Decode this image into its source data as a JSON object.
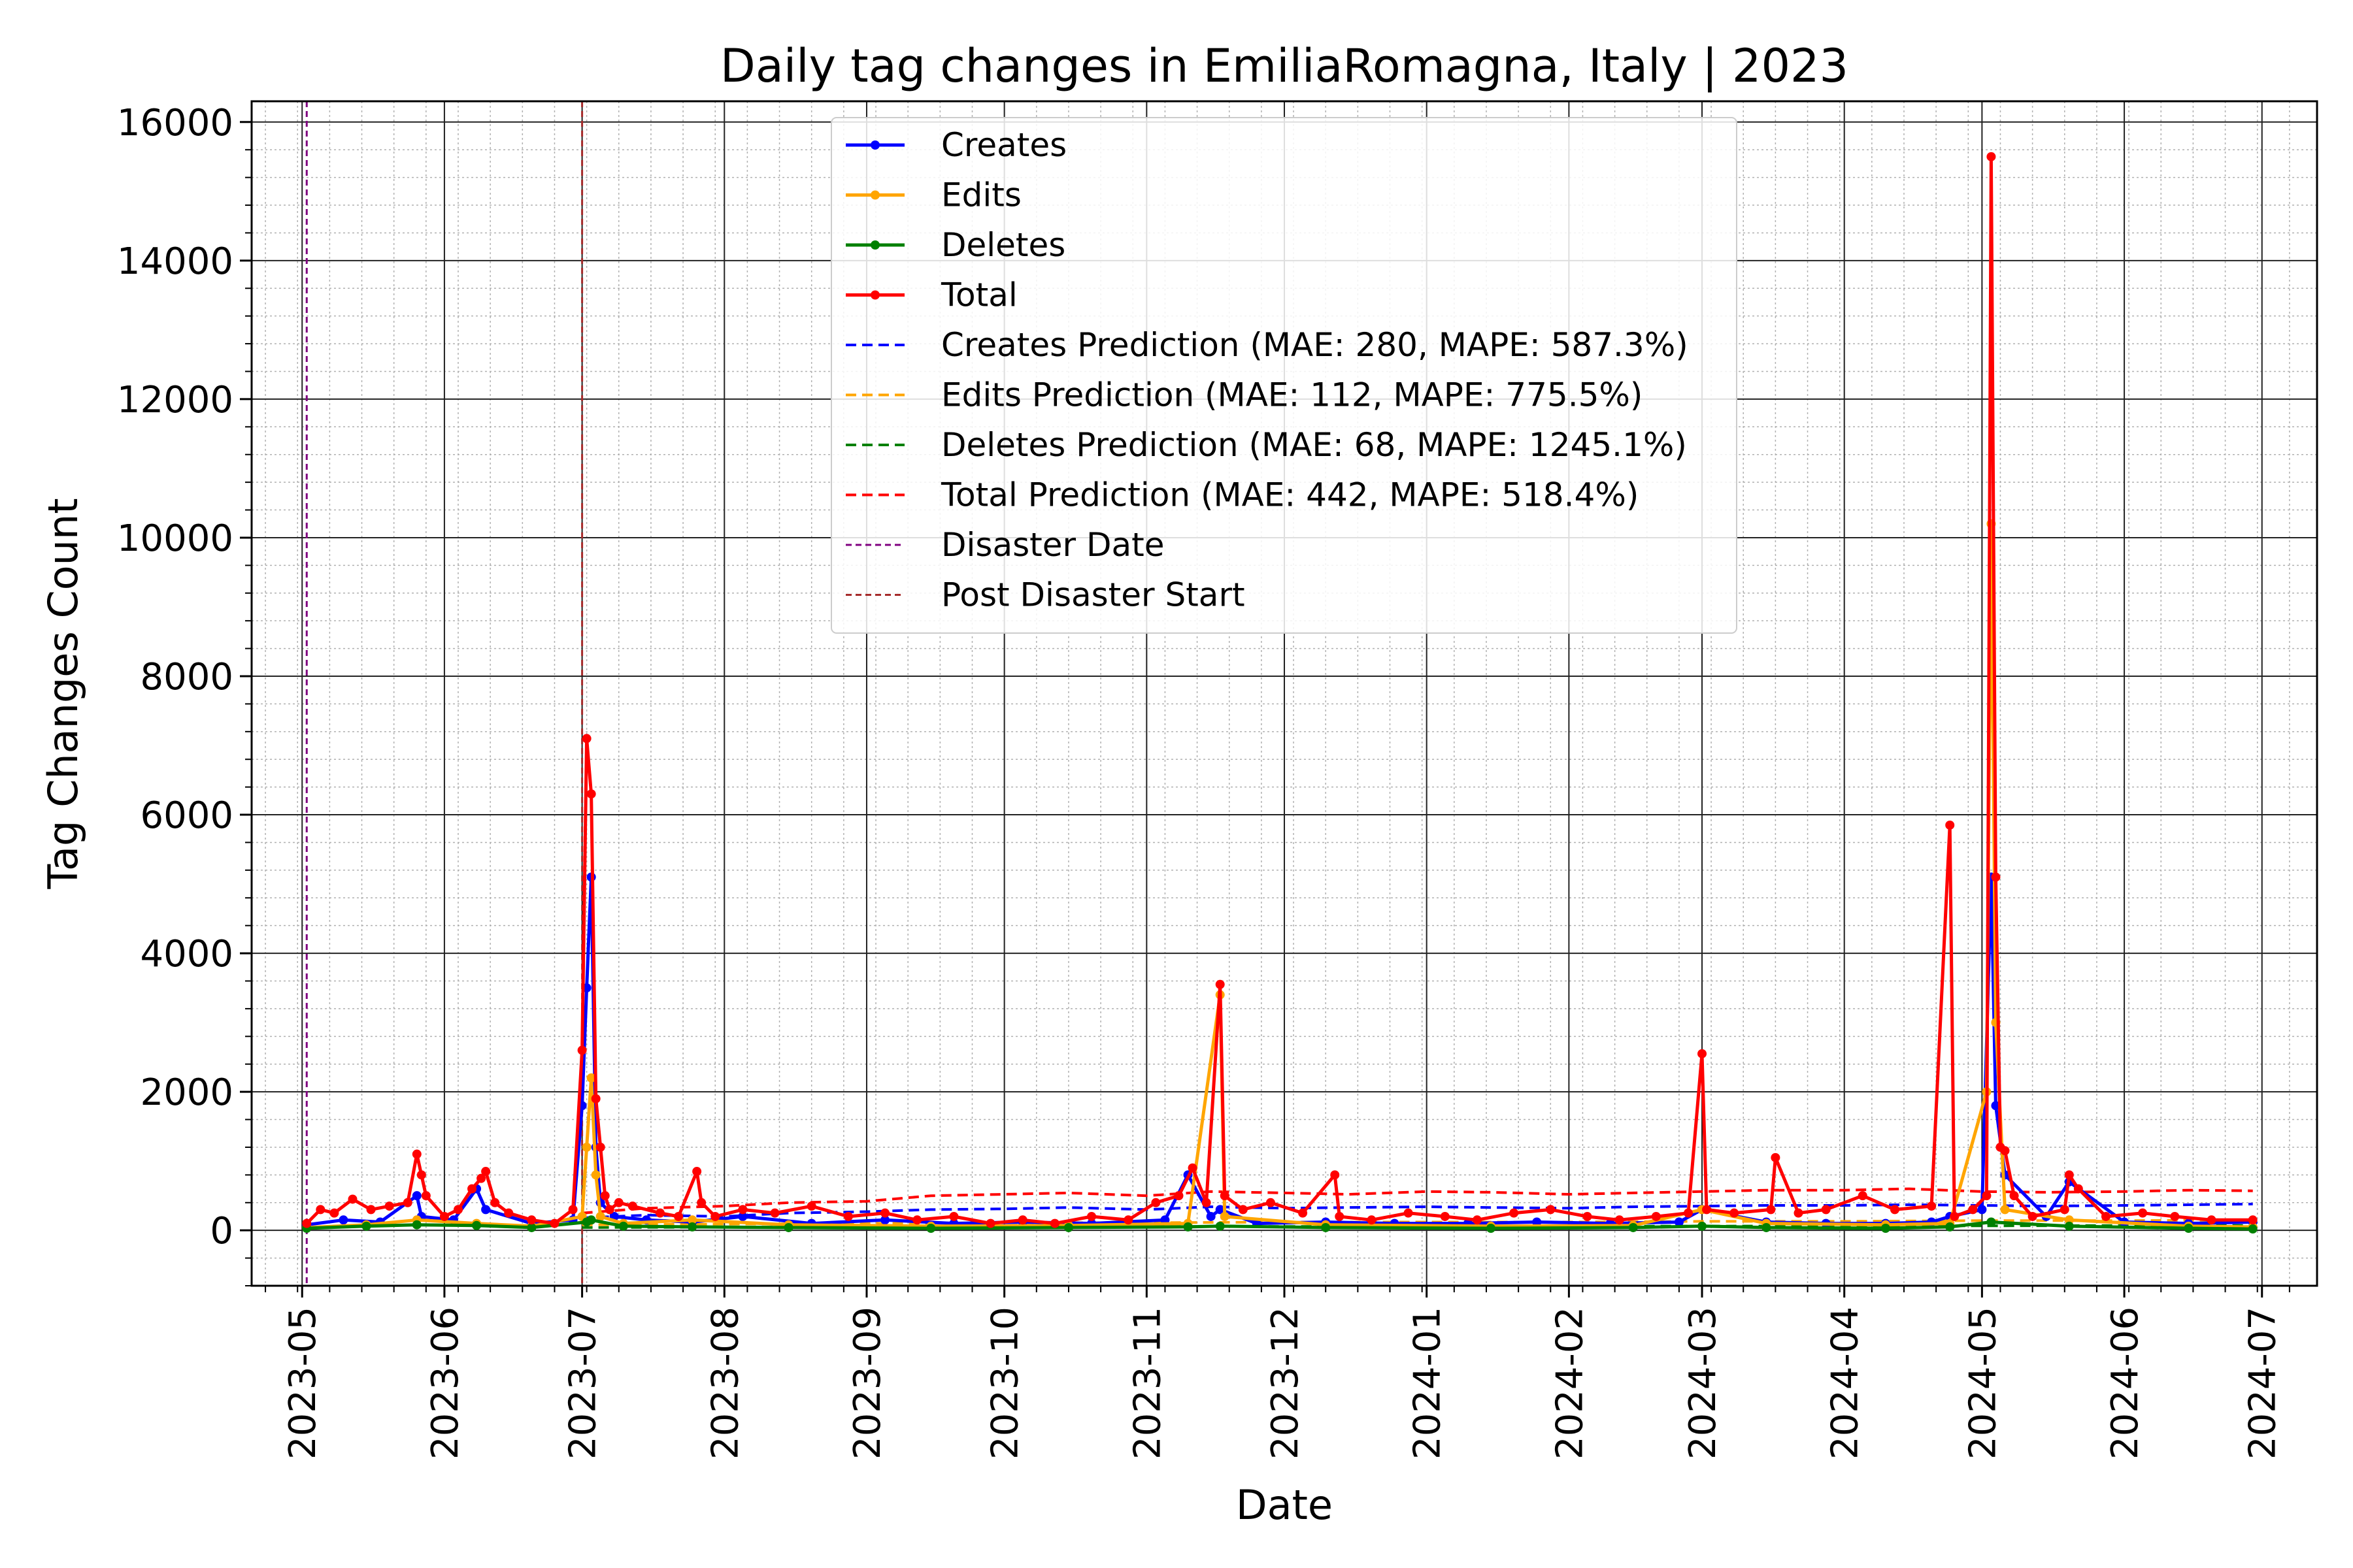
{
  "chart_data": {
    "type": "line",
    "title": "Daily tag changes in EmiliaRomagna, Italy | 2023",
    "xlabel": "Date",
    "ylabel": "Tag Changes Count",
    "ylim": [
      -800,
      16300
    ],
    "xlim": [
      "2023-04-20",
      "2024-07-13"
    ],
    "grid": true,
    "minor_grid": true,
    "legend_position": "top-center",
    "x_ticks": [
      "2023-05",
      "2023-06",
      "2023-07",
      "2023-08",
      "2023-09",
      "2023-10",
      "2023-11",
      "2023-12",
      "2024-01",
      "2024-02",
      "2024-03",
      "2024-04",
      "2024-05",
      "2024-06",
      "2024-07"
    ],
    "y_ticks": [
      0,
      2000,
      4000,
      6000,
      8000,
      10000,
      12000,
      14000,
      16000
    ],
    "series": [
      {
        "name": "Creates",
        "color": "#0000ff",
        "style": "solid-marker",
        "x": [
          "2023-05-02",
          "2023-05-10",
          "2023-05-18",
          "2023-05-26",
          "2023-05-27",
          "2023-06-03",
          "2023-06-08",
          "2023-06-10",
          "2023-06-20",
          "2023-06-29",
          "2023-07-01",
          "2023-07-02",
          "2023-07-03",
          "2023-07-04",
          "2023-07-05",
          "2023-07-08",
          "2023-07-15",
          "2023-07-25",
          "2023-08-05",
          "2023-08-20",
          "2023-09-05",
          "2023-09-20",
          "2023-10-05",
          "2023-10-20",
          "2023-11-05",
          "2023-11-10",
          "2023-11-15",
          "2023-11-17",
          "2023-11-25",
          "2023-12-10",
          "2023-12-25",
          "2024-01-10",
          "2024-01-25",
          "2024-02-10",
          "2024-02-25",
          "2024-03-01",
          "2024-03-15",
          "2024-03-28",
          "2024-04-10",
          "2024-04-20",
          "2024-04-24",
          "2024-05-01",
          "2024-05-03",
          "2024-05-04",
          "2024-05-06",
          "2024-05-15",
          "2024-05-20",
          "2024-06-01",
          "2024-06-15",
          "2024-06-29"
        ],
        "y": [
          80,
          150,
          120,
          500,
          200,
          150,
          600,
          300,
          100,
          150,
          1800,
          3500,
          5100,
          1200,
          400,
          200,
          150,
          120,
          200,
          100,
          150,
          100,
          120,
          100,
          150,
          800,
          200,
          300,
          100,
          120,
          100,
          100,
          120,
          100,
          120,
          300,
          120,
          100,
          100,
          120,
          200,
          300,
          5100,
          1800,
          800,
          200,
          700,
          120,
          100,
          120
        ]
      },
      {
        "name": "Edits",
        "color": "#ffa500",
        "style": "solid-marker",
        "x": [
          "2023-05-02",
          "2023-05-15",
          "2023-05-26",
          "2023-06-08",
          "2023-06-20",
          "2023-07-01",
          "2023-07-02",
          "2023-07-03",
          "2023-07-04",
          "2023-07-05",
          "2023-07-10",
          "2023-07-25",
          "2023-08-15",
          "2023-09-15",
          "2023-10-15",
          "2023-11-10",
          "2023-11-17",
          "2023-11-18",
          "2023-12-10",
          "2024-01-15",
          "2024-02-15",
          "2024-03-01",
          "2024-03-15",
          "2024-04-10",
          "2024-04-24",
          "2024-05-02",
          "2024-05-03",
          "2024-05-04",
          "2024-05-06",
          "2024-05-20",
          "2024-06-15",
          "2024-06-29"
        ],
        "y": [
          40,
          80,
          150,
          100,
          60,
          200,
          1200,
          2200,
          800,
          200,
          100,
          150,
          80,
          60,
          70,
          100,
          3400,
          200,
          80,
          60,
          70,
          300,
          100,
          80,
          100,
          2000,
          10200,
          3000,
          300,
          150,
          60,
          50
        ]
      },
      {
        "name": "Deletes",
        "color": "#008000",
        "style": "solid-marker",
        "x": [
          "2023-05-02",
          "2023-05-15",
          "2023-05-26",
          "2023-06-08",
          "2023-06-20",
          "2023-07-02",
          "2023-07-03",
          "2023-07-10",
          "2023-07-25",
          "2023-08-15",
          "2023-09-15",
          "2023-10-15",
          "2023-11-10",
          "2023-11-17",
          "2023-12-10",
          "2024-01-15",
          "2024-02-15",
          "2024-03-01",
          "2024-03-15",
          "2024-04-10",
          "2024-04-24",
          "2024-05-03",
          "2024-05-20",
          "2024-06-15",
          "2024-06-29"
        ],
        "y": [
          30,
          60,
          80,
          70,
          40,
          120,
          150,
          60,
          50,
          40,
          30,
          40,
          50,
          60,
          40,
          30,
          40,
          60,
          40,
          30,
          50,
          120,
          60,
          30,
          20
        ]
      },
      {
        "name": "Total",
        "color": "#ff0000",
        "style": "solid-marker",
        "x": [
          "2023-05-02",
          "2023-05-05",
          "2023-05-08",
          "2023-05-12",
          "2023-05-16",
          "2023-05-20",
          "2023-05-24",
          "2023-05-26",
          "2023-05-27",
          "2023-05-28",
          "2023-06-01",
          "2023-06-04",
          "2023-06-07",
          "2023-06-09",
          "2023-06-10",
          "2023-06-12",
          "2023-06-15",
          "2023-06-20",
          "2023-06-25",
          "2023-06-29",
          "2023-07-01",
          "2023-07-02",
          "2023-07-03",
          "2023-07-04",
          "2023-07-05",
          "2023-07-06",
          "2023-07-07",
          "2023-07-09",
          "2023-07-12",
          "2023-07-18",
          "2023-07-22",
          "2023-07-26",
          "2023-07-27",
          "2023-07-30",
          "2023-08-05",
          "2023-08-12",
          "2023-08-20",
          "2023-08-28",
          "2023-09-05",
          "2023-09-12",
          "2023-09-20",
          "2023-09-28",
          "2023-10-05",
          "2023-10-12",
          "2023-10-20",
          "2023-10-28",
          "2023-11-03",
          "2023-11-08",
          "2023-11-11",
          "2023-11-14",
          "2023-11-17",
          "2023-11-18",
          "2023-11-22",
          "2023-11-28",
          "2023-12-05",
          "2023-12-12",
          "2023-12-13",
          "2023-12-20",
          "2023-12-28",
          "2024-01-05",
          "2024-01-12",
          "2024-01-20",
          "2024-01-28",
          "2024-02-05",
          "2024-02-12",
          "2024-02-20",
          "2024-02-27",
          "2024-03-01",
          "2024-03-02",
          "2024-03-08",
          "2024-03-16",
          "2024-03-17",
          "2024-03-22",
          "2024-03-28",
          "2024-04-05",
          "2024-04-12",
          "2024-04-20",
          "2024-04-24",
          "2024-04-25",
          "2024-04-29",
          "2024-05-02",
          "2024-05-03",
          "2024-05-04",
          "2024-05-05",
          "2024-05-06",
          "2024-05-08",
          "2024-05-12",
          "2024-05-19",
          "2024-05-20",
          "2024-05-22",
          "2024-05-28",
          "2024-06-05",
          "2024-06-12",
          "2024-06-20",
          "2024-06-29"
        ],
        "y": [
          100,
          300,
          250,
          450,
          300,
          350,
          400,
          1100,
          800,
          500,
          200,
          300,
          600,
          750,
          850,
          400,
          250,
          150,
          100,
          300,
          2600,
          7100,
          6300,
          1900,
          1200,
          500,
          300,
          400,
          350,
          250,
          200,
          850,
          400,
          200,
          300,
          250,
          350,
          200,
          250,
          150,
          200,
          100,
          150,
          100,
          200,
          150,
          400,
          500,
          900,
          400,
          3550,
          500,
          300,
          400,
          250,
          800,
          200,
          150,
          250,
          200,
          150,
          250,
          300,
          200,
          150,
          200,
          250,
          2550,
          300,
          250,
          300,
          1050,
          250,
          300,
          500,
          300,
          350,
          5850,
          200,
          300,
          500,
          15500,
          5100,
          1200,
          1150,
          500,
          200,
          300,
          800,
          600,
          200,
          250,
          200,
          150,
          150
        ]
      },
      {
        "name": "Creates Prediction (MAE: 280, MAPE: 587.3%)",
        "color": "#0000ff",
        "style": "dashed",
        "x": [
          "2023-07-01",
          "2023-07-15",
          "2023-08-01",
          "2023-08-15",
          "2023-09-01",
          "2023-09-15",
          "2023-10-01",
          "2023-10-15",
          "2023-11-01",
          "2023-11-15",
          "2023-12-01",
          "2023-12-15",
          "2024-01-01",
          "2024-01-15",
          "2024-02-01",
          "2024-02-15",
          "2024-03-01",
          "2024-03-15",
          "2024-04-01",
          "2024-04-15",
          "2024-05-01",
          "2024-05-15",
          "2024-06-01",
          "2024-06-15",
          "2024-06-29"
        ],
        "y": [
          180,
          220,
          200,
          250,
          270,
          300,
          310,
          330,
          300,
          340,
          320,
          330,
          340,
          330,
          320,
          340,
          350,
          360,
          360,
          370,
          360,
          350,
          360,
          370,
          380
        ]
      },
      {
        "name": "Edits Prediction (MAE: 112, MAPE: 775.5%)",
        "color": "#ffa500",
        "style": "dashed",
        "x": [
          "2023-07-01",
          "2023-08-01",
          "2023-09-01",
          "2023-10-01",
          "2023-11-01",
          "2023-12-01",
          "2024-01-01",
          "2024-02-01",
          "2024-03-01",
          "2024-04-01",
          "2024-05-01",
          "2024-06-01",
          "2024-06-29"
        ],
        "y": [
          80,
          90,
          100,
          110,
          110,
          120,
          120,
          120,
          130,
          130,
          140,
          140,
          150
        ]
      },
      {
        "name": "Deletes Prediction (MAE: 68, MAPE: 1245.1%)",
        "color": "#008000",
        "style": "dashed",
        "x": [
          "2023-07-01",
          "2023-08-01",
          "2023-09-01",
          "2023-10-01",
          "2023-11-01",
          "2023-12-01",
          "2024-01-01",
          "2024-02-01",
          "2024-03-01",
          "2024-04-01",
          "2024-05-01",
          "2024-06-01",
          "2024-06-29"
        ],
        "y": [
          40,
          45,
          50,
          50,
          55,
          55,
          60,
          60,
          60,
          65,
          65,
          70,
          70
        ]
      },
      {
        "name": "Total Prediction (MAE: 442, MAPE: 518.4%)",
        "color": "#ff0000",
        "style": "dashed",
        "x": [
          "2023-07-01",
          "2023-07-15",
          "2023-08-01",
          "2023-08-15",
          "2023-09-01",
          "2023-09-15",
          "2023-10-01",
          "2023-10-15",
          "2023-11-01",
          "2023-11-15",
          "2023-12-01",
          "2023-12-15",
          "2024-01-01",
          "2024-01-15",
          "2024-02-01",
          "2024-02-15",
          "2024-03-01",
          "2024-03-15",
          "2024-04-01",
          "2024-04-15",
          "2024-05-01",
          "2024-05-15",
          "2024-06-01",
          "2024-06-15",
          "2024-06-29"
        ],
        "y": [
          250,
          320,
          350,
          400,
          420,
          500,
          520,
          540,
          500,
          560,
          540,
          520,
          560,
          550,
          520,
          540,
          560,
          580,
          580,
          600,
          560,
          550,
          560,
          580,
          570
        ]
      }
    ],
    "vlines": [
      {
        "name": "Disaster Date",
        "x": "2023-05-02",
        "color": "#800080",
        "style": "dashed"
      },
      {
        "name": "Post Disaster Start",
        "x": "2023-07-01",
        "color": "#a52a2a",
        "style": "dashed"
      }
    ]
  }
}
